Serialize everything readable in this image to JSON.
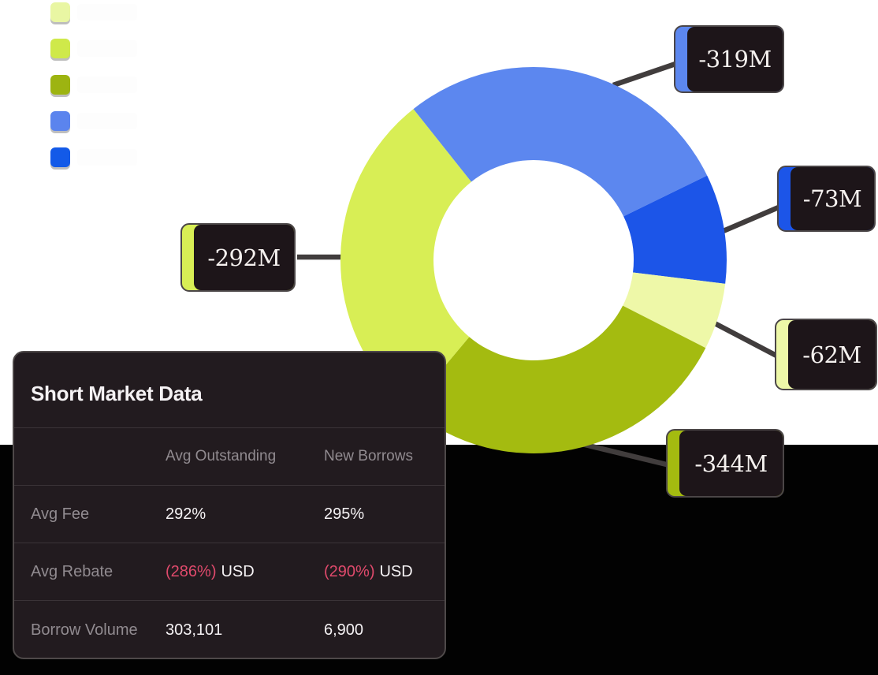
{
  "chart_data": {
    "type": "pie",
    "subtype": "donut",
    "title": "",
    "unit": "M",
    "legend_position": "top-left",
    "segments": [
      {
        "label": "-319M",
        "value": -319,
        "color": "#5c87ef",
        "start_angle": 321.5,
        "end_angle": 424
      },
      {
        "label": "-73M",
        "value": -73,
        "color": "#1c55e8",
        "start_angle": 64,
        "end_angle": 97
      },
      {
        "label": "-62M",
        "value": -62,
        "color": "#eef8a8",
        "start_angle": 97,
        "end_angle": 117
      },
      {
        "label": "-344M",
        "value": -344,
        "color": "#a4bb10",
        "start_angle": 117,
        "end_angle": 220
      },
      {
        "label": "-292M",
        "value": -292,
        "color": "#d8ee55",
        "start_angle": 220,
        "end_angle": 321.5
      }
    ],
    "legend": [
      {
        "color": "#e9f6a3",
        "label": ""
      },
      {
        "color": "#cfe94a",
        "label": ""
      },
      {
        "color": "#9db411",
        "label": ""
      },
      {
        "color": "#5b84ee",
        "label": ""
      },
      {
        "color": "#135ae8",
        "label": ""
      }
    ]
  },
  "panel": {
    "title": "Short Market Data",
    "columns": [
      "Avg Outstanding",
      "New Borrows"
    ],
    "rows": {
      "avg_fee": {
        "label": "Avg Fee",
        "outstanding": "292%",
        "borrows": "295%"
      },
      "avg_rebate": {
        "label": "Avg Rebate",
        "outstanding_neg": "(286%)",
        "outstanding_unit": "USD",
        "borrows_neg": "(290%)",
        "borrows_unit": "USD"
      },
      "borrow_volume": {
        "label": "Borrow Volume",
        "outstanding": "303,101",
        "borrows": "6,900"
      }
    },
    "negative_color": "#e04a6c"
  },
  "colors": {
    "page_top_background": "#ffffff",
    "page_bottom_background": "#020202",
    "panel_background": "#221b1f",
    "callout_background": "#1d1519",
    "callout_border": "#4b4647",
    "connector": "#413d3d",
    "text_primary": "#f5f2f4",
    "text_muted": "#918b90"
  }
}
